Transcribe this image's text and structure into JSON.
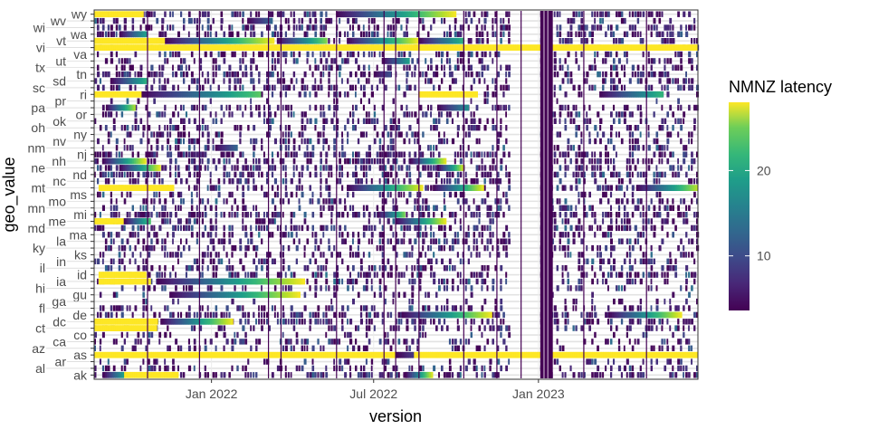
{
  "chart_data": {
    "type": "heatmap",
    "xlabel": "version",
    "ylabel": "geo_value",
    "x_ticks": [
      {
        "date": "2022-01-01",
        "label": "Jan 2022"
      },
      {
        "date": "2022-07-01",
        "label": "Jul 2022"
      },
      {
        "date": "2023-01-01",
        "label": "Jan 2023"
      }
    ],
    "xlim": [
      "2021-08-23",
      "2023-06-28"
    ],
    "y_categories": [
      "wy",
      "wv",
      "wi",
      "wa",
      "vt",
      "vi",
      "va",
      "ut",
      "tx",
      "tn",
      "sd",
      "sc",
      "ri",
      "pr",
      "pa",
      "or",
      "ok",
      "oh",
      "ny",
      "nv",
      "nm",
      "nj",
      "nh",
      "ne",
      "nd",
      "nc",
      "mt",
      "ms",
      "mo",
      "mn",
      "mi",
      "me",
      "md",
      "ma",
      "la",
      "ky",
      "ks",
      "in",
      "il",
      "id",
      "ia",
      "hi",
      "gu",
      "ga",
      "fl",
      "de",
      "dc",
      "ct",
      "co",
      "ca",
      "az",
      "as",
      "ar",
      "al",
      "ak"
    ],
    "color_scale": {
      "name": "viridis",
      "limits": [
        3.6,
        28
      ],
      "legend_title": "NMNZ latency",
      "legend_ticks": [
        10,
        20
      ]
    },
    "legend_position": "right",
    "grid": true,
    "row_density": {
      "default": 0.35,
      "wy": 0.55,
      "wi": 0.5,
      "wa": 0.5,
      "tn": 0.5,
      "sc": 0.45,
      "nj": 0.5,
      "nh": 0.55,
      "ne": 0.5,
      "nd": 0.55,
      "mt": 0.45,
      "mi": 0.55,
      "md": 0.5,
      "id": 0.5,
      "de": 0.6,
      "dc": 0.55,
      "ak": 0.5,
      "pr": 0.1,
      "ri": 0.15,
      "gu": 0.1,
      "ga": 0.15,
      "ar": 0.2,
      "co": 0.2
    },
    "gap_period": [
      "2022-12-01",
      "2022-12-31"
    ],
    "dark_band": [
      "2023-01-03",
      "2023-01-17"
    ],
    "vertical_lines": [
      "2021-10-21",
      "2021-12-18",
      "2022-03-05",
      "2022-03-19",
      "2022-05-20",
      "2022-07-12",
      "2022-07-25",
      "2022-08-20",
      "2022-10-09",
      "2022-11-15",
      "2022-12-12",
      "2023-02-20",
      "2023-05-01"
    ],
    "segments": [
      [
        "wy",
        "2021-08-23",
        "2021-10-17",
        28,
        28
      ],
      [
        "wy",
        "2022-05-20",
        "2022-10-01",
        4,
        28
      ],
      [
        "wv",
        "2022-02-10",
        "2022-03-10",
        4,
        12
      ],
      [
        "wa",
        "2021-09-20",
        "2021-10-20",
        4,
        18
      ],
      [
        "vt",
        "2021-08-23",
        "2021-11-10",
        28,
        28
      ],
      [
        "vt",
        "2021-11-10",
        "2022-03-12",
        4,
        28
      ],
      [
        "vt",
        "2022-03-15",
        "2022-05-10",
        4,
        24
      ],
      [
        "vt",
        "2022-06-01",
        "2022-08-20",
        4,
        28
      ],
      [
        "vt",
        "2022-08-20",
        "2022-10-10",
        4,
        20
      ],
      [
        "vi",
        "2021-08-23",
        "2023-06-28",
        28,
        28
      ],
      [
        "ut",
        "2022-07-10",
        "2022-08-10",
        4,
        18
      ],
      [
        "tn",
        "2022-07-01",
        "2022-07-20",
        4,
        10
      ],
      [
        "sd",
        "2021-09-10",
        "2021-10-22",
        4,
        20
      ],
      [
        "ri",
        "2021-08-23",
        "2021-10-15",
        28,
        28
      ],
      [
        "ri",
        "2021-10-15",
        "2022-02-25",
        4,
        22
      ],
      [
        "ri",
        "2022-08-20",
        "2022-10-25",
        28,
        28
      ],
      [
        "ri",
        "2023-03-10",
        "2023-05-20",
        4,
        20
      ],
      [
        "pa",
        "2022-09-10",
        "2022-10-15",
        4,
        16
      ],
      [
        "pa",
        "2021-09-05",
        "2021-10-08",
        4,
        26
      ],
      [
        "nm",
        "2022-01-05",
        "2022-01-30",
        4,
        12
      ],
      [
        "nh",
        "2021-09-01",
        "2021-10-20",
        4,
        28
      ],
      [
        "nh",
        "2022-08-10",
        "2022-09-20",
        4,
        28
      ],
      [
        "ne",
        "2021-09-20",
        "2021-11-05",
        4,
        28
      ],
      [
        "ne",
        "2022-09-10",
        "2022-10-10",
        4,
        28
      ],
      [
        "mt",
        "2021-08-28",
        "2021-11-20",
        28,
        28
      ],
      [
        "mt",
        "2022-06-01",
        "2022-08-25",
        4,
        28
      ],
      [
        "mt",
        "2022-09-05",
        "2022-11-01",
        4,
        28
      ],
      [
        "mt",
        "2023-04-20",
        "2023-06-28",
        4,
        26
      ],
      [
        "me",
        "2021-08-23",
        "2021-09-25",
        28,
        28
      ],
      [
        "me",
        "2021-09-25",
        "2021-10-25",
        4,
        22
      ],
      [
        "me",
        "2022-07-25",
        "2022-09-20",
        4,
        28
      ],
      [
        "mi",
        "2022-07-05",
        "2022-08-05",
        4,
        24
      ],
      [
        "id",
        "2021-08-28",
        "2021-10-20",
        28,
        28
      ],
      [
        "ia",
        "2021-08-28",
        "2021-10-25",
        28,
        28
      ],
      [
        "ia",
        "2021-11-01",
        "2022-04-15",
        4,
        28
      ],
      [
        "gu",
        "2021-11-15",
        "2022-04-10",
        4,
        28
      ],
      [
        "de",
        "2022-08-01",
        "2022-11-10",
        4,
        28
      ],
      [
        "de",
        "2023-03-20",
        "2023-06-10",
        4,
        28
      ],
      [
        "dc",
        "2021-08-23",
        "2021-11-02",
        28,
        28
      ],
      [
        "dc",
        "2021-11-05",
        "2022-01-25",
        4,
        28
      ],
      [
        "ct",
        "2021-08-23",
        "2021-11-01",
        28,
        28
      ],
      [
        "as",
        "2021-08-23",
        "2022-07-25",
        28,
        28
      ],
      [
        "as",
        "2022-07-25",
        "2022-08-15",
        3.6,
        8
      ],
      [
        "as",
        "2022-08-15",
        "2023-06-28",
        28,
        28
      ],
      [
        "ak",
        "2021-09-25",
        "2021-11-25",
        28,
        28
      ],
      [
        "ak",
        "2021-09-02",
        "2021-09-25",
        4,
        18
      ],
      [
        "ak",
        "2022-08-05",
        "2022-09-05",
        4,
        28
      ]
    ]
  }
}
